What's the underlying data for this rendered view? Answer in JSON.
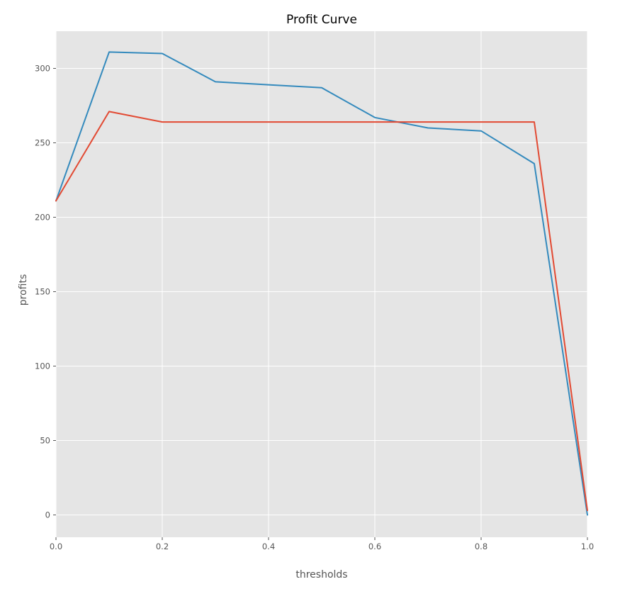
{
  "chart_data": {
    "type": "line",
    "title": "Profit Curve",
    "xlabel": "thresholds",
    "ylabel": "profits",
    "xlim": [
      0.0,
      1.0
    ],
    "ylim": [
      -15,
      325
    ],
    "xticks": [
      0.0,
      0.2,
      0.4,
      0.6,
      0.8,
      1.0
    ],
    "xtick_labels": [
      "0.0",
      "0.2",
      "0.4",
      "0.6",
      "0.8",
      "1.0"
    ],
    "yticks": [
      0,
      50,
      100,
      150,
      200,
      250,
      300
    ],
    "ytick_labels": [
      "0",
      "50",
      "100",
      "150",
      "200",
      "250",
      "300"
    ],
    "grid": true,
    "background": "#e5e5e5",
    "series": [
      {
        "color": "#348abd",
        "x": [
          0.0,
          0.1,
          0.2,
          0.3,
          0.4,
          0.5,
          0.6,
          0.7,
          0.8,
          0.9,
          1.0
        ],
        "y": [
          211,
          311,
          310,
          291,
          289,
          287,
          267,
          260,
          258,
          236,
          0
        ]
      },
      {
        "color": "#e24a33",
        "x": [
          0.0,
          0.1,
          0.2,
          0.3,
          0.4,
          0.5,
          0.6,
          0.7,
          0.8,
          0.9,
          1.0
        ],
        "y": [
          211,
          271,
          264,
          264,
          264,
          264,
          264,
          264,
          264,
          264,
          3
        ]
      }
    ]
  }
}
